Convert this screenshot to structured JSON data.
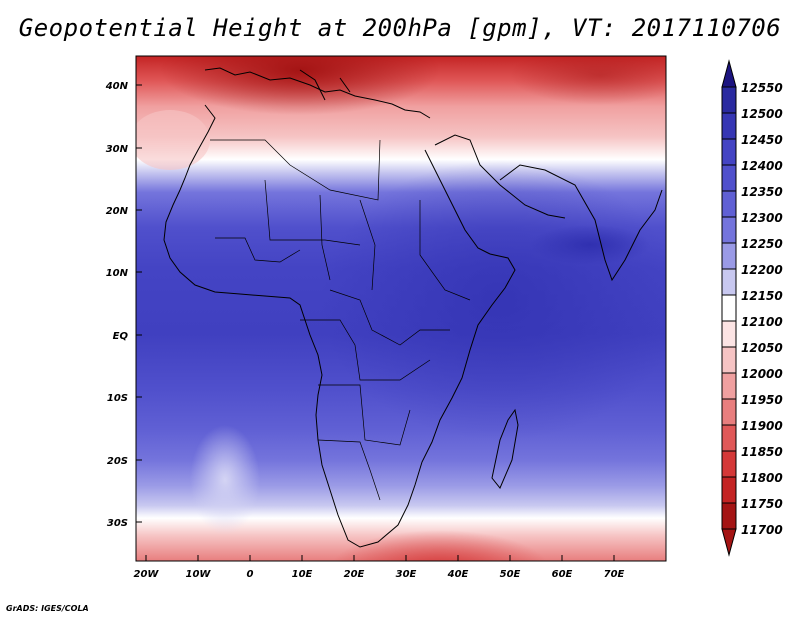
{
  "title": "Geopotential Height at 200hPa [gpm], VT: 2017110706",
  "footer": "GrADS: IGES/COLA",
  "map": {
    "lat_labels": [
      "40N",
      "30N",
      "20N",
      "10N",
      "EQ",
      "10S",
      "20S",
      "30S"
    ],
    "lon_labels": [
      "20W",
      "10W",
      "0",
      "10E",
      "20E",
      "30E",
      "40E",
      "50E",
      "60E",
      "70E"
    ]
  },
  "colorbar": {
    "levels": [
      "12550",
      "12500",
      "12450",
      "12400",
      "12350",
      "12300",
      "12250",
      "12200",
      "12150",
      "12100",
      "12050",
      "12000",
      "11950",
      "11900",
      "11850",
      "11800",
      "11750",
      "11700"
    ],
    "colors": [
      "#1c1480",
      "#2a2aa0",
      "#3636b4",
      "#4444c4",
      "#5050cc",
      "#6060d4",
      "#7474dc",
      "#9a9ae6",
      "#c8c8f0",
      "#ffffff",
      "#fce4e4",
      "#f6c4c4",
      "#f0a0a0",
      "#e87e7e",
      "#e05858",
      "#d43838",
      "#c42424",
      "#a41414"
    ]
  },
  "chart_data": {
    "type": "heatmap",
    "title": "Geopotential Height at 200hPa [gpm], VT: 2017110706",
    "variable": "Geopotential Height at 200hPa",
    "units": "gpm",
    "valid_time": "2017110706",
    "xlim": [
      -22,
      80
    ],
    "ylim": [
      -37,
      45
    ],
    "contour_levels": [
      11700,
      11750,
      11800,
      11850,
      11900,
      11950,
      12000,
      12050,
      12100,
      12150,
      12200,
      12250,
      12300,
      12350,
      12400,
      12450,
      12500,
      12550
    ],
    "x_ticks": [
      "20W",
      "10W",
      "0",
      "10E",
      "20E",
      "30E",
      "40E",
      "50E",
      "60E",
      "70E"
    ],
    "y_ticks": [
      "40N",
      "30N",
      "20N",
      "10N",
      "EQ",
      "10S",
      "20S",
      "30S"
    ]
  }
}
